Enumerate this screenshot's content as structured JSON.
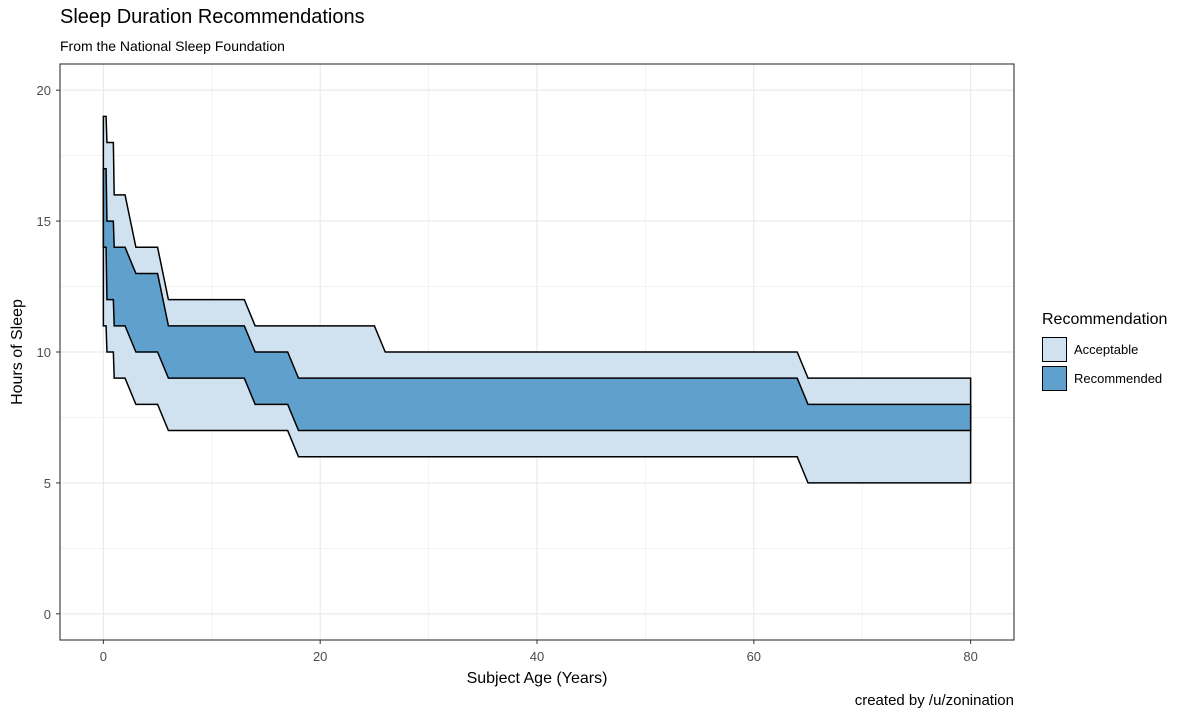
{
  "title": "Sleep Duration Recommendations",
  "subtitle": "From the National Sleep Foundation",
  "caption": "created by /u/zonination",
  "legend": {
    "title": "Recommendation",
    "items": [
      {
        "label": "Acceptable",
        "color": "#d0e2ef"
      },
      {
        "label": "Recommended",
        "color": "#5fa0cd"
      }
    ]
  },
  "chart_data": {
    "type": "area",
    "title": "Sleep Duration Recommendations",
    "subtitle": "From the National Sleep Foundation",
    "xlabel": "Subject Age (Years)",
    "ylabel": "Hours of Sleep",
    "xlim": [
      -4,
      84
    ],
    "ylim": [
      -1,
      21
    ],
    "xticks": [
      0,
      20,
      40,
      60,
      80
    ],
    "yticks": [
      0,
      5,
      10,
      15,
      20
    ],
    "grid": true,
    "legend_position": "right",
    "series": [
      {
        "name": "Acceptable",
        "color": "#d0e2ef",
        "points": [
          {
            "age": 0.0,
            "low": 11,
            "high": 19
          },
          {
            "age": 0.25,
            "low": 11,
            "high": 19
          },
          {
            "age": 0.33,
            "low": 10,
            "high": 18
          },
          {
            "age": 0.92,
            "low": 10,
            "high": 18
          },
          {
            "age": 1.0,
            "low": 9,
            "high": 16
          },
          {
            "age": 2.0,
            "low": 9,
            "high": 16
          },
          {
            "age": 3.0,
            "low": 8,
            "high": 14
          },
          {
            "age": 5.0,
            "low": 8,
            "high": 14
          },
          {
            "age": 6.0,
            "low": 7,
            "high": 12
          },
          {
            "age": 13.0,
            "low": 7,
            "high": 12
          },
          {
            "age": 14.0,
            "low": 7,
            "high": 11
          },
          {
            "age": 17.0,
            "low": 7,
            "high": 11
          },
          {
            "age": 18.0,
            "low": 6,
            "high": 11
          },
          {
            "age": 25.0,
            "low": 6,
            "high": 11
          },
          {
            "age": 26.0,
            "low": 6,
            "high": 10
          },
          {
            "age": 64.0,
            "low": 6,
            "high": 10
          },
          {
            "age": 65.0,
            "low": 5,
            "high": 9
          },
          {
            "age": 80.0,
            "low": 5,
            "high": 9
          }
        ]
      },
      {
        "name": "Recommended",
        "color": "#5fa0cd",
        "points": [
          {
            "age": 0.0,
            "low": 14,
            "high": 17
          },
          {
            "age": 0.25,
            "low": 14,
            "high": 17
          },
          {
            "age": 0.33,
            "low": 12,
            "high": 15
          },
          {
            "age": 0.92,
            "low": 12,
            "high": 15
          },
          {
            "age": 1.0,
            "low": 11,
            "high": 14
          },
          {
            "age": 2.0,
            "low": 11,
            "high": 14
          },
          {
            "age": 3.0,
            "low": 10,
            "high": 13
          },
          {
            "age": 5.0,
            "low": 10,
            "high": 13
          },
          {
            "age": 6.0,
            "low": 9,
            "high": 11
          },
          {
            "age": 13.0,
            "low": 9,
            "high": 11
          },
          {
            "age": 14.0,
            "low": 8,
            "high": 10
          },
          {
            "age": 17.0,
            "low": 8,
            "high": 10
          },
          {
            "age": 18.0,
            "low": 7,
            "high": 9
          },
          {
            "age": 64.0,
            "low": 7,
            "high": 9
          },
          {
            "age": 65.0,
            "low": 7,
            "high": 8
          },
          {
            "age": 80.0,
            "low": 7,
            "high": 8
          }
        ]
      }
    ]
  }
}
